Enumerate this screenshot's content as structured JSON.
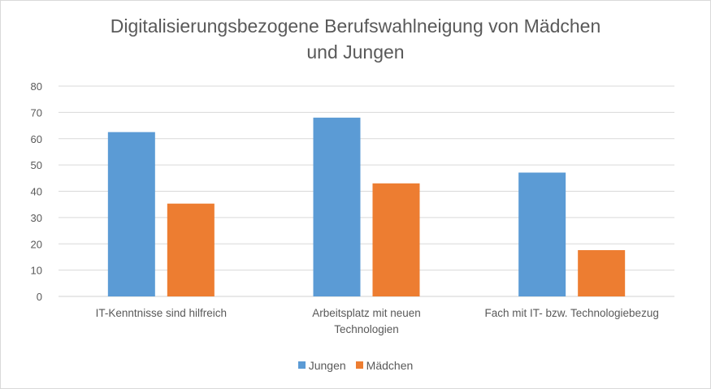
{
  "chart_data": {
    "type": "bar",
    "title": "Digitalisierungsbezogene Berufswahlneigung von Mädchen und Jungen",
    "title_lines": [
      "Digitalisierungsbezogene Berufswahlneigung von Mädchen",
      "und Jungen"
    ],
    "categories": [
      "IT-Kenntnisse sind hilfreich",
      "Arbeitsplatz mit neuen Technologien",
      "Fach mit IT- bzw. Technologiebezug"
    ],
    "category_lines": [
      [
        "IT-Kenntnisse sind hilfreich"
      ],
      [
        "Arbeitsplatz mit neuen",
        "Technologien"
      ],
      [
        "Fach mit IT- bzw. Technologiebezug"
      ]
    ],
    "series": [
      {
        "name": "Jungen",
        "color": "#5b9bd5",
        "values": [
          62.5,
          68.0,
          47.1
        ]
      },
      {
        "name": "Mädchen",
        "color": "#ed7d31",
        "values": [
          35.3,
          43.0,
          17.6
        ]
      }
    ],
    "xlabel": "",
    "ylabel": "",
    "ylim": [
      0,
      80
    ],
    "yticks": [
      0,
      10,
      20,
      30,
      40,
      50,
      60,
      70,
      80
    ],
    "grid": true,
    "legend_position": "bottom"
  }
}
